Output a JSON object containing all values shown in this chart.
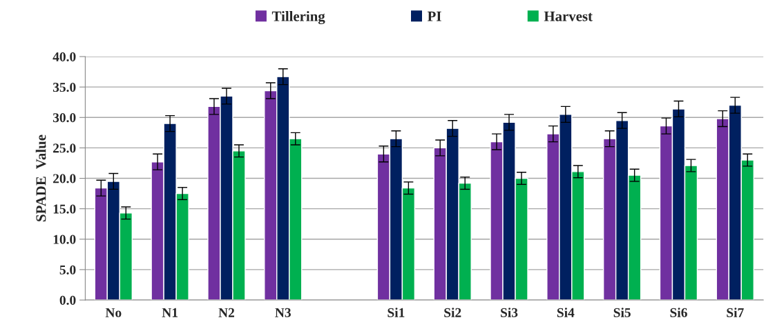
{
  "chart_data": {
    "type": "bar",
    "ylabel": "SPADE  Value",
    "categories": [
      "No",
      "N1",
      "N2",
      "N3",
      null,
      "Si1",
      "Si2",
      "Si3",
      "Si4",
      "Si5",
      "Si6",
      "Si7"
    ],
    "series": [
      {
        "name": "Tillering",
        "color": "#7030a0",
        "values": [
          18.4,
          22.7,
          31.8,
          34.4,
          null,
          24.0,
          25.0,
          26.0,
          27.3,
          26.5,
          28.6,
          29.8
        ],
        "errors": [
          1.3,
          1.3,
          1.3,
          1.3,
          null,
          1.3,
          1.3,
          1.3,
          1.3,
          1.3,
          1.3,
          1.3
        ]
      },
      {
        "name": "PI",
        "color": "#002060",
        "values": [
          19.5,
          29.0,
          33.5,
          36.7,
          null,
          26.5,
          28.2,
          29.2,
          30.5,
          29.5,
          31.4,
          32.0
        ],
        "errors": [
          1.3,
          1.3,
          1.3,
          1.3,
          null,
          1.3,
          1.3,
          1.3,
          1.3,
          1.3,
          1.3,
          1.3
        ]
      },
      {
        "name": "Harvest",
        "color": "#00b050",
        "values": [
          14.3,
          17.5,
          24.5,
          26.5,
          null,
          18.4,
          19.2,
          20.0,
          21.1,
          20.5,
          22.1,
          23.0
        ],
        "errors": [
          1.0,
          1.0,
          1.0,
          1.0,
          null,
          1.0,
          1.0,
          1.0,
          1.0,
          1.0,
          1.0,
          1.0
        ]
      }
    ],
    "ylim": [
      0,
      40
    ],
    "yticks": [
      {
        "value": 0,
        "label": "0.0"
      },
      {
        "value": 5,
        "label": "5.0"
      },
      {
        "value": 10,
        "label": "10.0"
      },
      {
        "value": 15,
        "label": "15.0"
      },
      {
        "value": 20,
        "label": "20.0"
      },
      {
        "value": 25,
        "label": "25.0"
      },
      {
        "value": 30,
        "label": "30.0"
      },
      {
        "value": 35,
        "label": "35.0"
      },
      {
        "value": 40,
        "label": "40.0"
      }
    ],
    "grid": "y",
    "legend": "top"
  }
}
